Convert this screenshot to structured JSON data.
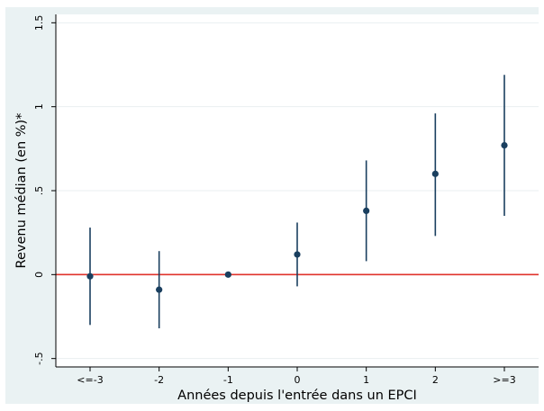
{
  "chart_data": {
    "type": "scatter",
    "subtype": "point-estimates-with-confidence-intervals",
    "title": "",
    "xlabel": "Années depuis l'entrée dans un EPCI",
    "ylabel": "Revenu médian (en %)*",
    "categories": [
      "<=-3",
      "-2",
      "-1",
      "0",
      "1",
      "2",
      ">=3"
    ],
    "y_ticks": [
      -0.5,
      0,
      0.5,
      1,
      1.5
    ],
    "y_tick_labels": [
      "-.5",
      "0",
      ".5",
      "1",
      "1.5"
    ],
    "ylim": [
      -0.55,
      1.55
    ],
    "grid": "horizontal",
    "reference_line": {
      "y": 0,
      "color": "#e0332c"
    },
    "series": [
      {
        "estimate": [
          -0.01,
          -0.09,
          0.0,
          0.12,
          0.38,
          0.6,
          0.77
        ],
        "ci_low": [
          -0.3,
          -0.32,
          0.0,
          -0.07,
          0.08,
          0.23,
          0.35
        ],
        "ci_high": [
          0.28,
          0.14,
          0.0,
          0.31,
          0.68,
          0.96,
          1.19
        ],
        "color": "#1a3f5f"
      }
    ]
  }
}
